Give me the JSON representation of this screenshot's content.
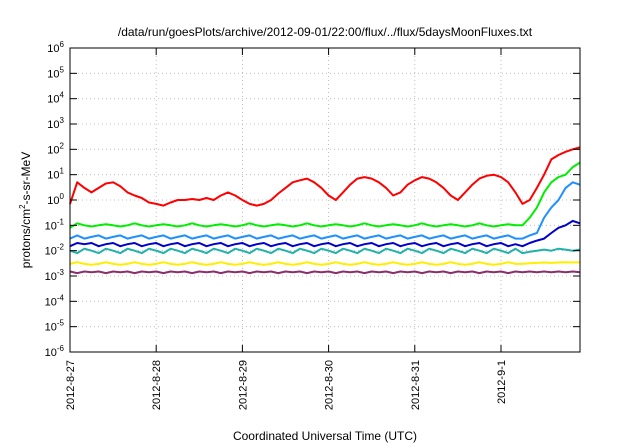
{
  "chart_data": {
    "type": "line",
    "title": "/data/run/goesPlots/archive/2012-09-01/22:00/flux/../flux/5daysMoonFluxes.txt",
    "xlabel": "Coordinated Universal Time (UTC)",
    "ylabel": {
      "before": "protons/cm",
      "sup": "2",
      "after": "-s-sr-MeV"
    },
    "yscale": "log",
    "ylim": [
      1e-06,
      1000000
    ],
    "y_ticks": [
      {
        "base": "10",
        "exp": "6",
        "value": 1000000
      },
      {
        "base": "10",
        "exp": "5",
        "value": 100000
      },
      {
        "base": "10",
        "exp": "4",
        "value": 10000
      },
      {
        "base": "10",
        "exp": "3",
        "value": 1000
      },
      {
        "base": "10",
        "exp": "2",
        "value": 100
      },
      {
        "base": "10",
        "exp": "1",
        "value": 10
      },
      {
        "base": "10",
        "exp": "0",
        "value": 1
      },
      {
        "base": "10",
        "exp": "-1",
        "value": 0.1
      },
      {
        "base": "10",
        "exp": "-2",
        "value": 0.01
      },
      {
        "base": "10",
        "exp": "-3",
        "value": 0.001
      },
      {
        "base": "10",
        "exp": "-4",
        "value": 0.0001
      },
      {
        "base": "10",
        "exp": "-5",
        "value": 1e-05
      },
      {
        "base": "10",
        "exp": "-6",
        "value": 1e-06
      }
    ],
    "xlim": [
      "2012-08-27 00:00",
      "2012-09-01 22:00"
    ],
    "x_ticks": [
      "2012-8-27",
      "2012-8-28",
      "2012-8-29",
      "2012-8-30",
      "2012-8-31",
      "2012-9-1"
    ],
    "grid": true,
    "legend": "none",
    "x": [
      "2012-08-27 00:00",
      "2012-08-27 02:00",
      "2012-08-27 04:00",
      "2012-08-27 06:00",
      "2012-08-27 08:00",
      "2012-08-27 10:00",
      "2012-08-27 12:00",
      "2012-08-27 14:00",
      "2012-08-27 16:00",
      "2012-08-27 18:00",
      "2012-08-27 20:00",
      "2012-08-27 22:00",
      "2012-08-28 00:00",
      "2012-08-28 02:00",
      "2012-08-28 04:00",
      "2012-08-28 06:00",
      "2012-08-28 08:00",
      "2012-08-28 10:00",
      "2012-08-28 12:00",
      "2012-08-28 14:00",
      "2012-08-28 16:00",
      "2012-08-28 18:00",
      "2012-08-28 20:00",
      "2012-08-28 22:00",
      "2012-08-29 00:00",
      "2012-08-29 02:00",
      "2012-08-29 04:00",
      "2012-08-29 06:00",
      "2012-08-29 08:00",
      "2012-08-29 10:00",
      "2012-08-29 12:00",
      "2012-08-29 14:00",
      "2012-08-29 16:00",
      "2012-08-29 18:00",
      "2012-08-29 20:00",
      "2012-08-29 22:00",
      "2012-08-30 00:00",
      "2012-08-30 02:00",
      "2012-08-30 04:00",
      "2012-08-30 06:00",
      "2012-08-30 08:00",
      "2012-08-30 10:00",
      "2012-08-30 12:00",
      "2012-08-30 14:00",
      "2012-08-30 16:00",
      "2012-08-30 18:00",
      "2012-08-30 20:00",
      "2012-08-30 22:00",
      "2012-08-31 00:00",
      "2012-08-31 02:00",
      "2012-08-31 04:00",
      "2012-08-31 06:00",
      "2012-08-31 08:00",
      "2012-08-31 10:00",
      "2012-08-31 12:00",
      "2012-08-31 14:00",
      "2012-08-31 16:00",
      "2012-08-31 18:00",
      "2012-08-31 20:00",
      "2012-08-31 22:00",
      "2012-09-01 00:00",
      "2012-09-01 02:00",
      "2012-09-01 04:00",
      "2012-09-01 06:00",
      "2012-09-01 08:00",
      "2012-09-01 10:00",
      "2012-09-01 12:00",
      "2012-09-01 14:00",
      "2012-09-01 16:00",
      "2012-09-01 18:00",
      "2012-09-01 20:00",
      "2012-09-01 22:00"
    ],
    "series": [
      {
        "color": "#ff0000",
        "values": [
          0.7,
          5,
          3,
          2,
          3,
          4.5,
          5,
          3.5,
          2,
          1.5,
          1.2,
          0.8,
          0.7,
          0.6,
          0.8,
          1,
          1,
          1.1,
          1,
          1.2,
          1,
          1.5,
          2,
          1.5,
          1,
          0.7,
          0.6,
          0.7,
          1,
          1.8,
          3,
          5,
          6,
          7,
          5,
          3,
          1.5,
          1,
          2,
          4,
          7,
          8,
          7,
          5,
          3,
          1.5,
          2,
          4,
          6,
          8,
          7,
          5,
          3,
          1.5,
          1,
          2,
          4,
          7,
          9,
          10,
          8,
          5,
          2,
          0.7,
          1,
          3,
          10,
          40,
          60,
          80,
          100,
          120
        ]
      },
      {
        "color": "#00ee00",
        "values": [
          0.08,
          0.12,
          0.1,
          0.09,
          0.1,
          0.11,
          0.1,
          0.09,
          0.1,
          0.12,
          0.1,
          0.09,
          0.1,
          0.11,
          0.1,
          0.09,
          0.1,
          0.12,
          0.1,
          0.09,
          0.1,
          0.11,
          0.1,
          0.09,
          0.1,
          0.12,
          0.1,
          0.09,
          0.1,
          0.11,
          0.1,
          0.09,
          0.1,
          0.12,
          0.1,
          0.09,
          0.1,
          0.11,
          0.1,
          0.09,
          0.1,
          0.12,
          0.1,
          0.09,
          0.1,
          0.11,
          0.1,
          0.09,
          0.1,
          0.12,
          0.1,
          0.09,
          0.1,
          0.11,
          0.1,
          0.09,
          0.1,
          0.12,
          0.1,
          0.09,
          0.1,
          0.11,
          0.1,
          0.1,
          0.2,
          0.5,
          2,
          5,
          8,
          10,
          20,
          30
        ]
      },
      {
        "color": "#1e90ff",
        "values": [
          0.03,
          0.04,
          0.03,
          0.035,
          0.04,
          0.03,
          0.035,
          0.04,
          0.03,
          0.035,
          0.04,
          0.03,
          0.035,
          0.04,
          0.03,
          0.035,
          0.04,
          0.03,
          0.035,
          0.04,
          0.03,
          0.035,
          0.04,
          0.03,
          0.035,
          0.04,
          0.03,
          0.035,
          0.04,
          0.03,
          0.035,
          0.04,
          0.03,
          0.035,
          0.04,
          0.03,
          0.035,
          0.04,
          0.03,
          0.035,
          0.04,
          0.03,
          0.035,
          0.04,
          0.03,
          0.035,
          0.04,
          0.03,
          0.035,
          0.04,
          0.03,
          0.035,
          0.04,
          0.03,
          0.035,
          0.04,
          0.03,
          0.035,
          0.04,
          0.03,
          0.035,
          0.04,
          0.03,
          0.03,
          0.04,
          0.05,
          0.2,
          0.5,
          1,
          3,
          5,
          4
        ]
      },
      {
        "color": "#0000cc",
        "values": [
          0.015,
          0.02,
          0.018,
          0.02,
          0.015,
          0.018,
          0.02,
          0.015,
          0.018,
          0.02,
          0.015,
          0.018,
          0.02,
          0.015,
          0.018,
          0.02,
          0.015,
          0.018,
          0.02,
          0.015,
          0.018,
          0.02,
          0.015,
          0.018,
          0.02,
          0.015,
          0.018,
          0.02,
          0.015,
          0.018,
          0.02,
          0.015,
          0.018,
          0.02,
          0.015,
          0.018,
          0.02,
          0.015,
          0.018,
          0.02,
          0.015,
          0.018,
          0.02,
          0.015,
          0.018,
          0.02,
          0.015,
          0.018,
          0.02,
          0.015,
          0.018,
          0.02,
          0.015,
          0.018,
          0.02,
          0.015,
          0.018,
          0.02,
          0.015,
          0.018,
          0.02,
          0.015,
          0.018,
          0.015,
          0.02,
          0.025,
          0.03,
          0.05,
          0.08,
          0.1,
          0.15,
          0.12
        ]
      },
      {
        "color": "#20b2aa",
        "values": [
          0.01,
          0.008,
          0.012,
          0.01,
          0.008,
          0.012,
          0.01,
          0.008,
          0.012,
          0.01,
          0.008,
          0.012,
          0.01,
          0.008,
          0.012,
          0.01,
          0.008,
          0.012,
          0.01,
          0.008,
          0.012,
          0.01,
          0.008,
          0.012,
          0.01,
          0.008,
          0.012,
          0.01,
          0.008,
          0.012,
          0.01,
          0.008,
          0.012,
          0.01,
          0.008,
          0.012,
          0.01,
          0.008,
          0.012,
          0.01,
          0.008,
          0.012,
          0.01,
          0.008,
          0.012,
          0.01,
          0.008,
          0.012,
          0.01,
          0.008,
          0.012,
          0.01,
          0.008,
          0.012,
          0.01,
          0.008,
          0.012,
          0.01,
          0.008,
          0.012,
          0.01,
          0.008,
          0.012,
          0.008,
          0.009,
          0.01,
          0.011,
          0.01,
          0.012,
          0.011,
          0.01,
          0.011
        ]
      },
      {
        "color": "#ffee00",
        "values": [
          0.003,
          0.0035,
          0.003,
          0.0028,
          0.003,
          0.0035,
          0.003,
          0.0028,
          0.003,
          0.0035,
          0.003,
          0.0028,
          0.003,
          0.0035,
          0.003,
          0.0028,
          0.003,
          0.0035,
          0.003,
          0.0028,
          0.003,
          0.0035,
          0.003,
          0.0028,
          0.003,
          0.0035,
          0.003,
          0.0028,
          0.003,
          0.0035,
          0.003,
          0.0028,
          0.003,
          0.0035,
          0.003,
          0.0028,
          0.003,
          0.0035,
          0.003,
          0.0028,
          0.003,
          0.0035,
          0.003,
          0.0028,
          0.003,
          0.0035,
          0.003,
          0.0028,
          0.003,
          0.0035,
          0.003,
          0.0028,
          0.003,
          0.0035,
          0.003,
          0.0028,
          0.003,
          0.0035,
          0.003,
          0.0028,
          0.003,
          0.0035,
          0.003,
          0.003,
          0.0032,
          0.0033,
          0.0034,
          0.0033,
          0.0034,
          0.0035,
          0.0034,
          0.0035
        ]
      },
      {
        "color": "#8b2e6b",
        "values": [
          0.0015,
          0.0013,
          0.0015,
          0.0014,
          0.0015,
          0.0013,
          0.0015,
          0.0014,
          0.0015,
          0.0013,
          0.0015,
          0.0014,
          0.0015,
          0.0013,
          0.0015,
          0.0014,
          0.0015,
          0.0013,
          0.0015,
          0.0014,
          0.0015,
          0.0013,
          0.0015,
          0.0014,
          0.0015,
          0.0013,
          0.0015,
          0.0014,
          0.0015,
          0.0013,
          0.0015,
          0.0014,
          0.0015,
          0.0013,
          0.0015,
          0.0014,
          0.0015,
          0.0013,
          0.0015,
          0.0014,
          0.0015,
          0.0013,
          0.0015,
          0.0014,
          0.0015,
          0.0013,
          0.0015,
          0.0014,
          0.0015,
          0.0013,
          0.0015,
          0.0014,
          0.0015,
          0.0013,
          0.0015,
          0.0014,
          0.0015,
          0.0013,
          0.0015,
          0.0014,
          0.0015,
          0.0013,
          0.0015,
          0.0014,
          0.0015,
          0.0014,
          0.0015,
          0.0014,
          0.0015,
          0.0014,
          0.0015,
          0.0014
        ]
      }
    ]
  }
}
